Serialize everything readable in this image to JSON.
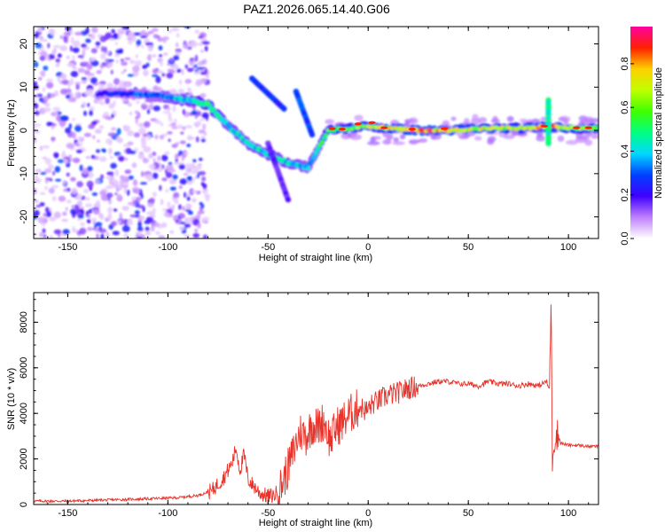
{
  "title": "PAZ1.2026.065.14.40.G06",
  "chart_data": [
    {
      "type": "heatmap",
      "title": "PAZ1.2026.065.14.40.G06",
      "xlabel": "Height of straight line (km)",
      "ylabel": "Frequency (Hz)",
      "xlim": [
        -167,
        115
      ],
      "ylim": [
        -25,
        24
      ],
      "xticks": [
        -150,
        -100,
        -50,
        0,
        50,
        100
      ],
      "yticks": [
        -20,
        -10,
        0,
        10,
        20
      ],
      "colorbar": {
        "label": "Normalized spectral amplitude",
        "range": [
          0.0,
          0.97
        ],
        "ticks": [
          0.0,
          0.2,
          0.4,
          0.6,
          0.8
        ]
      },
      "ridge": [
        {
          "h": -135,
          "f": 8.5,
          "a": 0.25
        },
        {
          "h": -120,
          "f": 8.5,
          "a": 0.3
        },
        {
          "h": -105,
          "f": 8.0,
          "a": 0.35
        },
        {
          "h": -90,
          "f": 7.0,
          "a": 0.45
        },
        {
          "h": -80,
          "f": 6.0,
          "a": 0.55
        },
        {
          "h": -70,
          "f": 1.0,
          "a": 0.45
        },
        {
          "h": -60,
          "f": -3.0,
          "a": 0.45
        },
        {
          "h": -50,
          "f": -5.5,
          "a": 0.45
        },
        {
          "h": -40,
          "f": -7.5,
          "a": 0.45
        },
        {
          "h": -30,
          "f": -8.5,
          "a": 0.4
        },
        {
          "h": -20,
          "f": 0.0,
          "a": 0.6
        },
        {
          "h": -10,
          "f": 0.5,
          "a": 0.65
        },
        {
          "h": 0,
          "f": 1.0,
          "a": 0.7
        },
        {
          "h": 10,
          "f": 0.5,
          "a": 0.75
        },
        {
          "h": 25,
          "f": 0.0,
          "a": 0.9
        },
        {
          "h": 40,
          "f": 0.0,
          "a": 0.85
        },
        {
          "h": 60,
          "f": 0.5,
          "a": 0.75
        },
        {
          "h": 80,
          "f": 0.5,
          "a": 0.7
        },
        {
          "h": 90,
          "f": 1.0,
          "a": 0.9
        },
        {
          "h": 100,
          "f": 0.5,
          "a": 0.7
        },
        {
          "h": 115,
          "f": 0.5,
          "a": 0.65
        }
      ]
    },
    {
      "type": "line",
      "xlabel": "Height of straight line (km)",
      "ylabel": "SNR (10 * v/v)",
      "xlim": [
        -167,
        115
      ],
      "ylim": [
        0,
        9300
      ],
      "xticks": [
        -150,
        -100,
        -50,
        0,
        50,
        100
      ],
      "yticks": [
        0,
        2000,
        4000,
        6000,
        8000
      ],
      "series": [
        {
          "name": "SNR",
          "color": "#e8332b",
          "x": [
            -167,
            -150,
            -130,
            -110,
            -95,
            -85,
            -78,
            -72,
            -68,
            -66,
            -64,
            -62,
            -60,
            -57,
            -54,
            -50,
            -47,
            -44,
            -40,
            -37,
            -34,
            -31,
            -28,
            -25,
            -22,
            -19,
            -16,
            -13,
            -10,
            -7,
            -4,
            -1,
            2,
            6,
            10,
            15,
            20,
            25,
            30,
            35,
            40,
            45,
            50,
            55,
            60,
            65,
            70,
            75,
            80,
            85,
            89,
            90.5,
            91.3,
            92,
            93,
            94.5,
            96,
            100,
            105,
            110,
            115
          ],
          "values": [
            150,
            150,
            200,
            250,
            300,
            400,
            600,
            1200,
            1800,
            2500,
            1500,
            2200,
            1100,
            800,
            500,
            350,
            400,
            700,
            1600,
            2400,
            3200,
            3000,
            3500,
            3400,
            3700,
            2800,
            3400,
            3600,
            3900,
            4100,
            4300,
            4100,
            4400,
            4600,
            4800,
            4900,
            5100,
            5200,
            5300,
            5400,
            5400,
            5300,
            5300,
            5200,
            5400,
            5300,
            5300,
            5200,
            5300,
            5200,
            5400,
            5000,
            9100,
            2000,
            2900,
            3100,
            2700,
            2600,
            2600,
            2550,
            2550
          ]
        }
      ]
    }
  ]
}
